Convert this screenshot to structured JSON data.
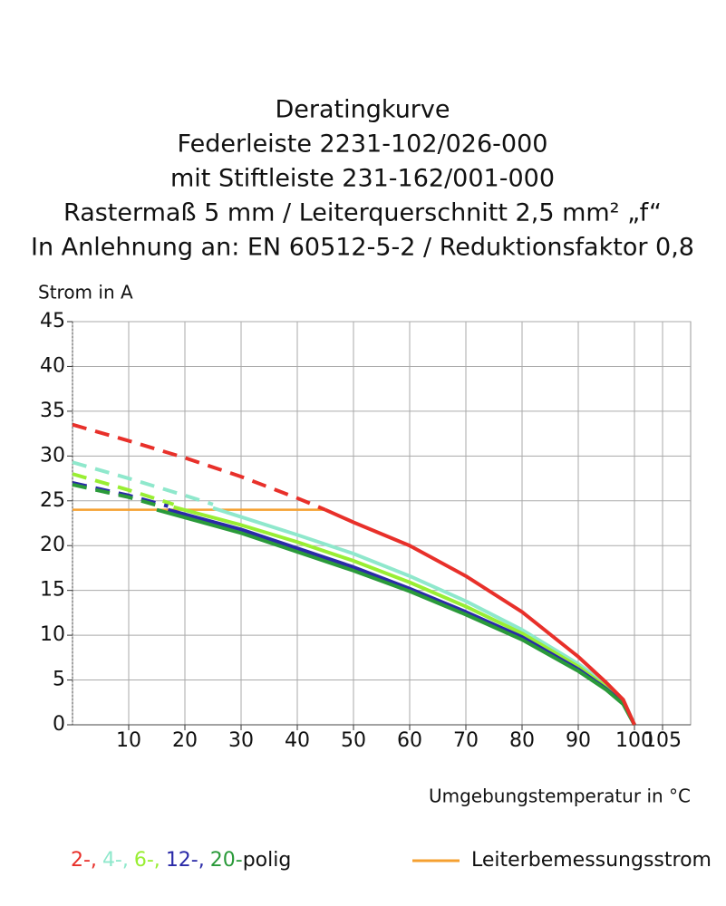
{
  "chart_data": {
    "type": "line",
    "title": [
      "Deratingkurve",
      "Federleiste 2231-102/026-000",
      "mit Stiftleiste 231-162/001-000",
      "Rastermaß 5 mm / Leiterquerschnitt 2,5 mm² „f“",
      "In Anlehnung an: EN 60512-5-2 / Reduktionsfaktor 0,8"
    ],
    "y_label": "Strom in A",
    "x_label": "Umgebungstemperatur in °C",
    "xlim": [
      0,
      110
    ],
    "xticks": [
      10,
      20,
      30,
      40,
      50,
      60,
      70,
      80,
      90,
      100,
      105
    ],
    "ylim": [
      0,
      45
    ],
    "yticks": [
      0,
      5,
      10,
      15,
      20,
      25,
      30,
      35,
      40,
      45
    ],
    "grid": true,
    "series": [
      {
        "name": "4-,",
        "color": "#8fe8cc",
        "dash_x": [
          0,
          10,
          20,
          25
        ],
        "dash_values": [
          29.3,
          27.5,
          25.6,
          24.6
        ],
        "x": [
          25,
          30,
          40,
          50,
          60,
          70,
          80,
          90,
          95,
          98,
          100
        ],
        "values": [
          24.2,
          23.2,
          21.2,
          19.1,
          16.6,
          13.8,
          10.6,
          6.8,
          4.5,
          2.8,
          0
        ]
      },
      {
        "name": "6-,",
        "color": "#99ee33",
        "dash_x": [
          0,
          10,
          18
        ],
        "dash_values": [
          28,
          26.2,
          24.6
        ],
        "x": [
          18,
          30,
          40,
          50,
          60,
          70,
          80,
          90,
          95,
          98,
          100
        ],
        "values": [
          24.3,
          22.3,
          20.4,
          18.3,
          15.9,
          13.2,
          10.2,
          6.5,
          4.2,
          2.6,
          0
        ]
      },
      {
        "name": "12-,",
        "color": "#2a2aa8",
        "dash_x": [
          0,
          10,
          17
        ],
        "dash_values": [
          27,
          25.6,
          24.4
        ],
        "x": [
          17,
          30,
          40,
          50,
          60,
          70,
          80,
          90,
          95,
          98,
          100
        ],
        "values": [
          24,
          21.8,
          19.7,
          17.6,
          15.2,
          12.6,
          9.8,
          6.2,
          4,
          2.4,
          0
        ]
      },
      {
        "name": "20-",
        "color": "#2a9a3a",
        "dash_x": [
          0,
          10,
          15
        ],
        "dash_values": [
          26.8,
          25.4,
          24.5
        ],
        "x": [
          15,
          30,
          40,
          50,
          60,
          70,
          80,
          90,
          95,
          98,
          100
        ],
        "values": [
          24,
          21.4,
          19.3,
          17.2,
          14.9,
          12.3,
          9.5,
          6,
          3.9,
          2.3,
          0
        ]
      },
      {
        "name": "2-,",
        "color": "#e8302a",
        "dash_x": [
          0,
          10,
          20,
          30,
          40,
          45
        ],
        "dash_values": [
          33.5,
          31.7,
          29.8,
          27.7,
          25.3,
          24
        ],
        "x": [
          45,
          50,
          60,
          70,
          80,
          90,
          95,
          98,
          100
        ],
        "values": [
          24,
          22.6,
          20,
          16.6,
          12.6,
          7.6,
          4.7,
          2.8,
          0
        ]
      }
    ],
    "legend_suffix": "polig",
    "reference": {
      "name": "Leiterbemessungsstrom",
      "color": "#f5a030",
      "value": 24,
      "x": [
        0,
        45
      ]
    }
  }
}
